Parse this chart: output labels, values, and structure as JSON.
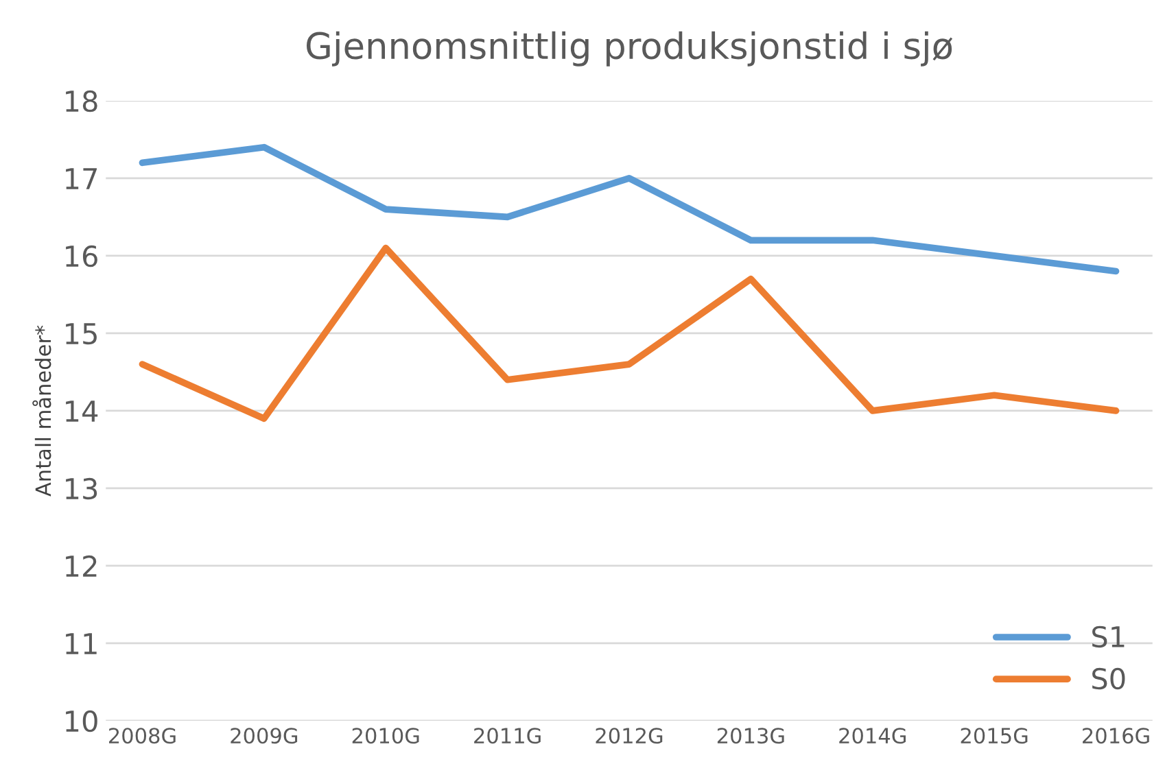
{
  "chart_data": {
    "type": "line",
    "title": "Gjennomsnittlig produksjonstid i sjø",
    "ylabel": "Antall måneder*",
    "categories": [
      "2008G",
      "2009G",
      "2010G",
      "2011G",
      "2012G",
      "2013G",
      "2014G",
      "2015G",
      "2016G"
    ],
    "series": [
      {
        "name": "S1",
        "color": "#5b9bd5",
        "values": [
          17.2,
          17.4,
          16.6,
          16.5,
          17.0,
          16.2,
          16.2,
          16.0,
          15.8
        ]
      },
      {
        "name": "S0",
        "color": "#ed7d31",
        "values": [
          14.6,
          13.9,
          16.1,
          14.4,
          14.6,
          15.7,
          14.0,
          14.2,
          14.0
        ]
      }
    ],
    "ylim": [
      10,
      18
    ],
    "yticks": [
      10,
      11,
      12,
      13,
      14,
      15,
      16,
      17,
      18
    ],
    "grid": "y",
    "legend": "bottom right",
    "marker": "none",
    "line_style": "solid"
  }
}
